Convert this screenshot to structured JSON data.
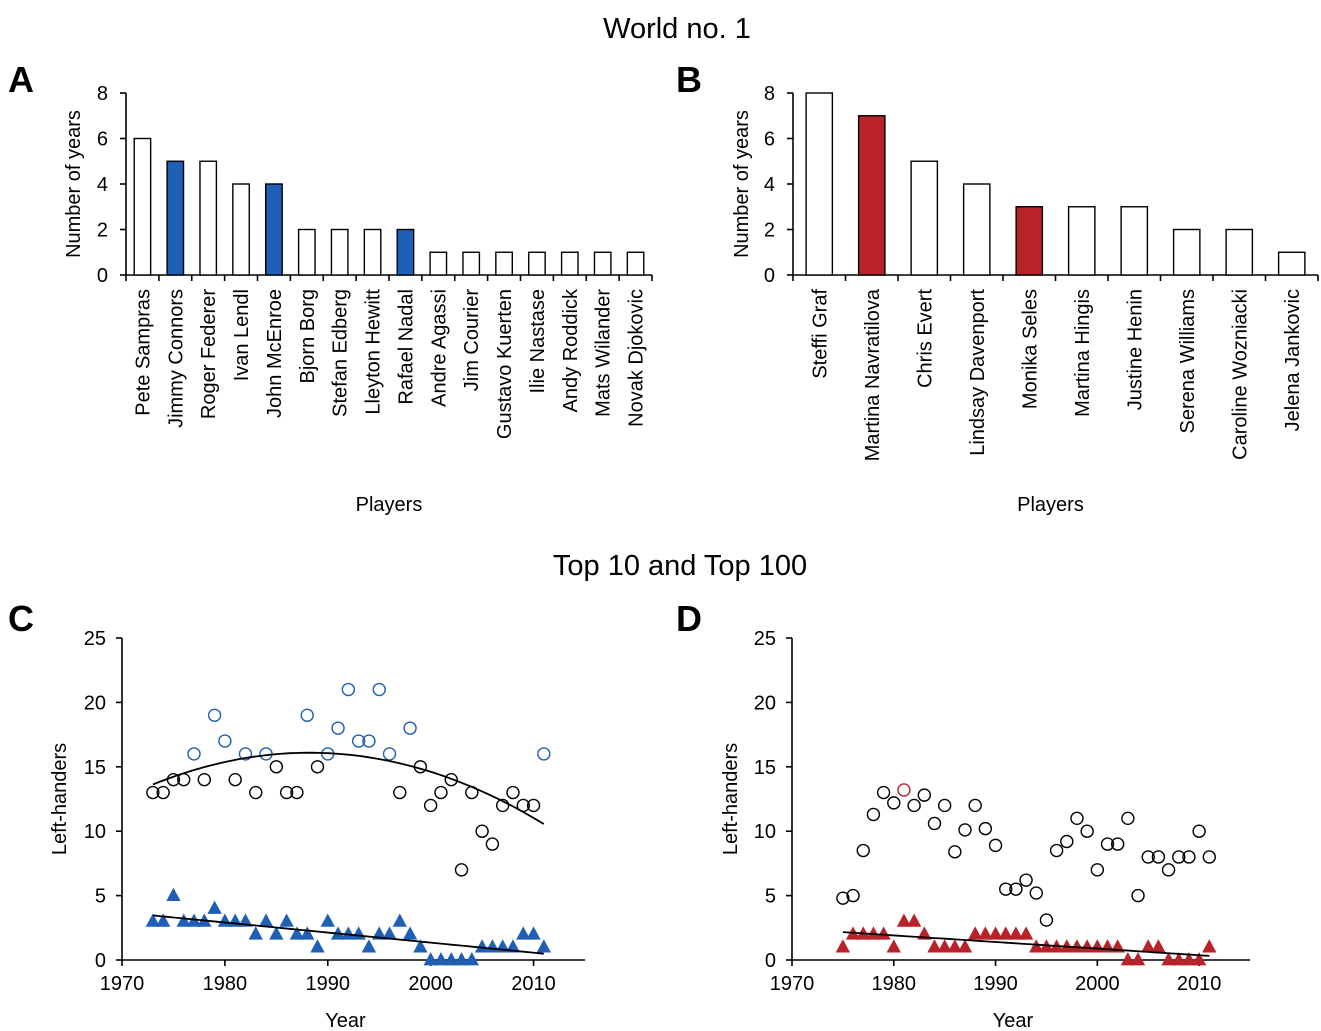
{
  "section_titles": {
    "top": "World no. 1",
    "bottom": "Top 10 and Top 100"
  },
  "colors": {
    "male_highlight": "#1f5fb5",
    "female_highlight": "#b8232a",
    "outline": "#000000",
    "fit_line": "#000000"
  },
  "chart_data": [
    {
      "panel": "A",
      "type": "bar",
      "xlabel": "Players",
      "ylabel": "Number of years",
      "ylim": [
        0,
        8
      ],
      "yticks": [
        "0",
        "2",
        "4",
        "6",
        "8"
      ],
      "categories": [
        "Pete Sampras",
        "Jimmy Connors",
        "Roger Federer",
        "Ivan Lendl",
        "John McEnroe",
        "Bjorn Borg",
        "Stefan Edberg",
        "Lleyton Hewitt",
        "Rafael Nadal",
        "Andre Agassi",
        "Jim Courier",
        "Gustavo Kuerten",
        "Ilie Nastase",
        "Andy Roddick",
        "Mats Wilander",
        "Novak Djokovic"
      ],
      "values": [
        6,
        5,
        5,
        4,
        4,
        2,
        2,
        2,
        2,
        1,
        1,
        1,
        1,
        1,
        1,
        1
      ],
      "left_handed": [
        false,
        true,
        false,
        false,
        true,
        false,
        false,
        false,
        true,
        false,
        false,
        false,
        false,
        false,
        false,
        false
      ]
    },
    {
      "panel": "B",
      "type": "bar",
      "xlabel": "Players",
      "ylabel": "Number of years",
      "ylim": [
        0,
        8
      ],
      "yticks": [
        "0",
        "2",
        "4",
        "6",
        "8"
      ],
      "categories": [
        "Steffi Graf",
        "Martina Navratilova",
        "Chris Evert",
        "Lindsay Davenport",
        "Monika Seles",
        "Martina Hingis",
        "Justine Henin",
        "Serena Williams",
        "Caroline Wozniacki",
        "Jelena Jankovic"
      ],
      "values": [
        8,
        7,
        5,
        4,
        3,
        3,
        3,
        2,
        2,
        1
      ],
      "left_handed": [
        false,
        true,
        false,
        false,
        true,
        false,
        false,
        false,
        false,
        false
      ]
    },
    {
      "panel": "C",
      "type": "scatter",
      "xlabel": "Year",
      "ylabel": "Left-handers",
      "xlim": [
        1970,
        2015
      ],
      "ylim": [
        0,
        25
      ],
      "xticks": [
        "1970",
        "1980",
        "1990",
        "2000",
        "2010"
      ],
      "yticks": [
        "0",
        "5",
        "10",
        "15",
        "20",
        "25"
      ],
      "series": [
        {
          "marker": "circle",
          "x": [
            1973,
            1974,
            1975,
            1976,
            1977,
            1978,
            1979,
            1980,
            1981,
            1982,
            1983,
            1984,
            1985,
            1986,
            1987,
            1988,
            1989,
            1990,
            1991,
            1992,
            1993,
            1994,
            1995,
            1996,
            1997,
            1998,
            1999,
            2000,
            2001,
            2002,
            2003,
            2004,
            2005,
            2006,
            2007,
            2008,
            2009,
            2010,
            2011
          ],
          "y": [
            13,
            13,
            14,
            14,
            16,
            14,
            19,
            17,
            14,
            16,
            13,
            16,
            15,
            13,
            13,
            19,
            15,
            16,
            18,
            21,
            17,
            17,
            21,
            16,
            13,
            18,
            15,
            12,
            13,
            14,
            7,
            13,
            10,
            9,
            12,
            13,
            12,
            12,
            16
          ],
          "highlight": [
            false,
            false,
            false,
            false,
            true,
            false,
            true,
            true,
            false,
            true,
            false,
            true,
            false,
            false,
            false,
            true,
            false,
            true,
            true,
            true,
            true,
            true,
            true,
            true,
            false,
            true,
            false,
            false,
            false,
            false,
            false,
            false,
            false,
            false,
            false,
            false,
            false,
            false,
            true
          ],
          "trend": "quadratic"
        },
        {
          "marker": "triangle",
          "x": [
            1973,
            1974,
            1975,
            1976,
            1977,
            1978,
            1979,
            1980,
            1981,
            1982,
            1983,
            1984,
            1985,
            1986,
            1987,
            1988,
            1989,
            1990,
            1991,
            1992,
            1993,
            1994,
            1995,
            1996,
            1997,
            1998,
            1999,
            2000,
            2001,
            2002,
            2003,
            2004,
            2005,
            2006,
            2007,
            2008,
            2009,
            2010,
            2011
          ],
          "y": [
            3,
            3,
            5,
            3,
            3,
            3,
            4,
            3,
            3,
            3,
            2,
            3,
            2,
            3,
            2,
            2,
            1,
            3,
            2,
            2,
            2,
            1,
            2,
            2,
            3,
            2,
            1,
            0,
            0,
            0,
            0,
            0,
            1,
            1,
            1,
            1,
            2,
            2,
            1
          ],
          "trend": "linear"
        }
      ]
    },
    {
      "panel": "D",
      "type": "scatter",
      "xlabel": "Year",
      "ylabel": "Left-handers",
      "xlim": [
        1970,
        2015
      ],
      "ylim": [
        0,
        25
      ],
      "xticks": [
        "1970",
        "1980",
        "1990",
        "2000",
        "2010"
      ],
      "yticks": [
        "0",
        "5",
        "10",
        "15",
        "20",
        "25"
      ],
      "series": [
        {
          "marker": "circle",
          "x": [
            1975,
            1976,
            1977,
            1978,
            1979,
            1980,
            1981,
            1982,
            1983,
            1984,
            1985,
            1986,
            1987,
            1988,
            1989,
            1990,
            1991,
            1992,
            1993,
            1994,
            1995,
            1996,
            1997,
            1998,
            1999,
            2000,
            2001,
            2002,
            2003,
            2004,
            2005,
            2006,
            2007,
            2008,
            2009,
            2010,
            2011
          ],
          "y": [
            4.8,
            5,
            8.5,
            11.3,
            13,
            12.2,
            13.2,
            12,
            12.8,
            10.6,
            12,
            8.4,
            10.1,
            12,
            10.2,
            8.9,
            5.5,
            5.5,
            6.2,
            5.2,
            3.1,
            8.5,
            9.2,
            11,
            10,
            7,
            9,
            9,
            11,
            5,
            8,
            8,
            7,
            8,
            8,
            10,
            8
          ],
          "highlight": [
            false,
            false,
            false,
            false,
            false,
            false,
            true,
            false,
            false,
            false,
            false,
            false,
            false,
            false,
            false,
            false,
            false,
            false,
            false,
            false,
            false,
            false,
            false,
            false,
            false,
            false,
            false,
            false,
            false,
            false,
            false,
            false,
            false,
            false,
            false,
            false,
            false
          ]
        },
        {
          "marker": "triangle",
          "x": [
            1975,
            1976,
            1977,
            1978,
            1979,
            1980,
            1981,
            1982,
            1983,
            1984,
            1985,
            1986,
            1987,
            1988,
            1989,
            1990,
            1991,
            1992,
            1993,
            1994,
            1995,
            1996,
            1997,
            1998,
            1999,
            2000,
            2001,
            2002,
            2003,
            2004,
            2005,
            2006,
            2007,
            2008,
            2009,
            2010,
            2011
          ],
          "y": [
            1,
            2,
            2,
            2,
            2,
            1,
            3,
            3,
            2,
            1,
            1,
            1,
            1,
            2,
            2,
            2,
            2,
            2,
            2,
            1,
            1,
            1,
            1,
            1,
            1,
            1,
            1,
            1,
            0,
            0,
            1,
            1,
            0,
            0,
            0,
            0,
            1
          ],
          "trend": "linear"
        }
      ]
    }
  ]
}
